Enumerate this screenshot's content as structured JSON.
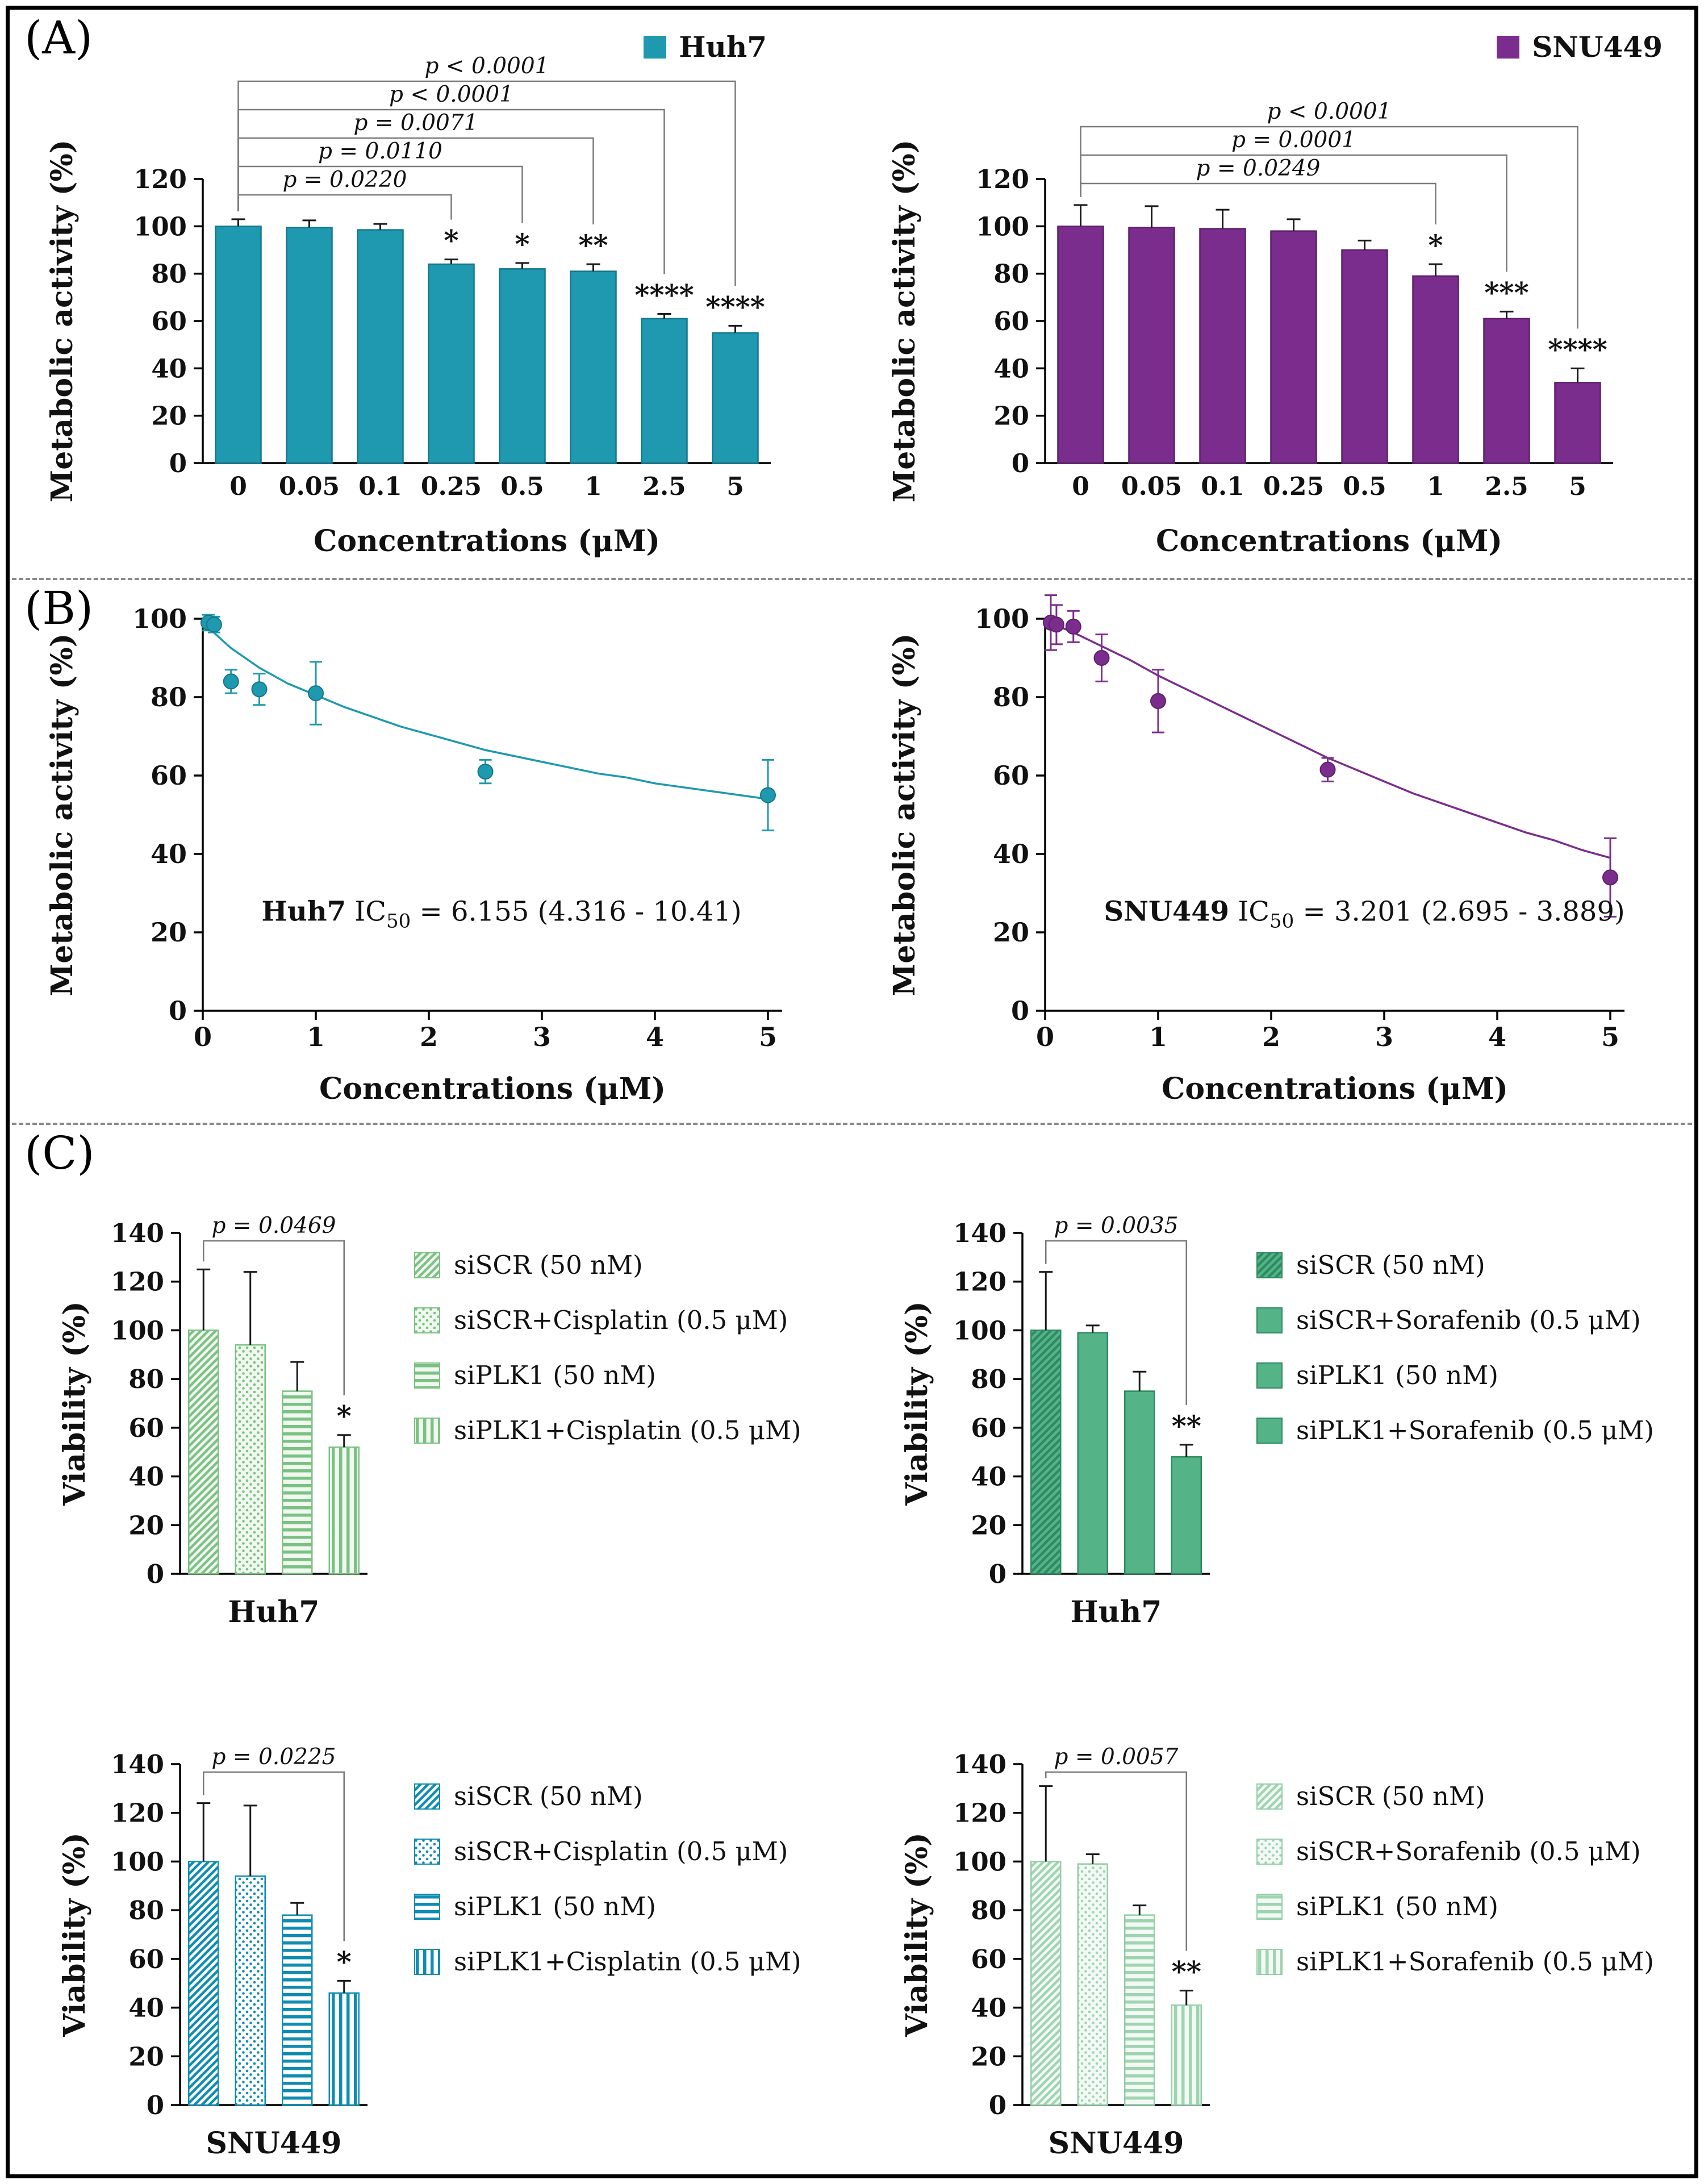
{
  "figure": {
    "panel_a_label": "(A)",
    "panel_b_label": "(B)",
    "panel_c_label": "(C)"
  },
  "chart_data": [
    {
      "id": "chart-a-huh7",
      "type": "bar",
      "legend_label": "Huh7",
      "color": "#1e99af",
      "bar_stroke": "#15768a",
      "xlabel": "Concentrations (μM)",
      "ylabel": "Metabolic activity (%)",
      "ylim": [
        0,
        120
      ],
      "ytick": 20,
      "categories": [
        "0",
        "0.05",
        "0.1",
        "0.25",
        "0.5",
        "1",
        "2.5",
        "5"
      ],
      "values": [
        100,
        99.5,
        98.5,
        84,
        82,
        81,
        61,
        55
      ],
      "errors": [
        3,
        3,
        2.5,
        2,
        2.5,
        3,
        2,
        3
      ],
      "sig": [
        "",
        "",
        "",
        "*",
        "*",
        "**",
        "****",
        "****"
      ],
      "brackets": [
        {
          "from": 0,
          "to": 3,
          "label": "p = 0.0220"
        },
        {
          "from": 0,
          "to": 4,
          "label": "p = 0.0110"
        },
        {
          "from": 0,
          "to": 5,
          "label": "p = 0.0071"
        },
        {
          "from": 0,
          "to": 6,
          "label": "p < 0.0001"
        },
        {
          "from": 0,
          "to": 7,
          "label": "p < 0.0001"
        }
      ]
    },
    {
      "id": "chart-a-snu449",
      "type": "bar",
      "legend_label": "SNU449",
      "color": "#7b2d8e",
      "bar_stroke": "#5c2069",
      "xlabel": "Concentrations (μM)",
      "ylabel": "Metabolic activity (%)",
      "ylim": [
        0,
        120
      ],
      "ytick": 20,
      "categories": [
        "0",
        "0.05",
        "0.1",
        "0.25",
        "0.5",
        "1",
        "2.5",
        "5"
      ],
      "values": [
        100,
        99.5,
        99,
        98,
        90,
        79,
        61,
        34
      ],
      "errors": [
        9,
        9,
        8,
        5,
        4,
        5,
        3,
        6
      ],
      "sig": [
        "",
        "",
        "",
        "",
        "",
        "*",
        "***",
        "****"
      ],
      "brackets": [
        {
          "from": 0,
          "to": 5,
          "label": "p = 0.0249"
        },
        {
          "from": 0,
          "to": 6,
          "label": "p = 0.0001"
        },
        {
          "from": 0,
          "to": 7,
          "label": "p < 0.0001"
        }
      ]
    },
    {
      "id": "chart-b-huh7",
      "type": "scatter",
      "color": "#1e99af",
      "point_stroke": "#157788",
      "xlabel": "Concentrations (μM)",
      "ylabel": "Metabolic activity (%)",
      "xlim": [
        0,
        5
      ],
      "ylim": [
        0,
        100
      ],
      "xticks": [
        0,
        1,
        2,
        3,
        4,
        5
      ],
      "ytick": 20,
      "points": [
        {
          "x": 0.05,
          "y": 99,
          "err": 2
        },
        {
          "x": 0.1,
          "y": 98.5,
          "err": 2
        },
        {
          "x": 0.25,
          "y": 84,
          "err": 3
        },
        {
          "x": 0.5,
          "y": 82,
          "err": 4
        },
        {
          "x": 1,
          "y": 81,
          "err": 8
        },
        {
          "x": 2.5,
          "y": 61,
          "err": 3
        },
        {
          "x": 5,
          "y": 55,
          "err": 9
        }
      ],
      "curve": [
        [
          0,
          99
        ],
        [
          0.25,
          92.5
        ],
        [
          0.5,
          87.5
        ],
        [
          0.75,
          83.5
        ],
        [
          1,
          80.5
        ],
        [
          1.25,
          77.5
        ],
        [
          1.5,
          75
        ],
        [
          1.75,
          72.5
        ],
        [
          2,
          70.5
        ],
        [
          2.25,
          68.5
        ],
        [
          2.5,
          66.5
        ],
        [
          2.75,
          65
        ],
        [
          3,
          63.5
        ],
        [
          3.25,
          62
        ],
        [
          3.5,
          60.5
        ],
        [
          3.75,
          59.5
        ],
        [
          4,
          58
        ],
        [
          4.25,
          57
        ],
        [
          4.5,
          56
        ],
        [
          4.75,
          55
        ],
        [
          5,
          54
        ]
      ],
      "annotation": {
        "name": "Huh7",
        "ic": " IC",
        "sub": "50",
        "rest": " = 6.155 (4.316 - 10.41)",
        "x": 0.52,
        "y": 23
      }
    },
    {
      "id": "chart-b-snu449",
      "type": "scatter",
      "color": "#7b2d8e",
      "point_stroke": "#5c2069",
      "xlabel": "Concentrations (μM)",
      "ylabel": "Metabolic activity (%)",
      "xlim": [
        0,
        5
      ],
      "ylim": [
        0,
        100
      ],
      "xticks": [
        0,
        1,
        2,
        3,
        4,
        5
      ],
      "ytick": 20,
      "points": [
        {
          "x": 0.05,
          "y": 99,
          "err": 7
        },
        {
          "x": 0.1,
          "y": 98.5,
          "err": 5
        },
        {
          "x": 0.25,
          "y": 98,
          "err": 4
        },
        {
          "x": 0.5,
          "y": 90,
          "err": 6
        },
        {
          "x": 1,
          "y": 79,
          "err": 8
        },
        {
          "x": 2.5,
          "y": 61.5,
          "err": 3
        },
        {
          "x": 5,
          "y": 34,
          "err": 10
        }
      ],
      "curve": [
        [
          0,
          99.5
        ],
        [
          0.25,
          96.5
        ],
        [
          0.5,
          93
        ],
        [
          0.75,
          89.5
        ],
        [
          1,
          85.5
        ],
        [
          1.25,
          82
        ],
        [
          1.5,
          78.5
        ],
        [
          1.75,
          75
        ],
        [
          2,
          71.5
        ],
        [
          2.25,
          68
        ],
        [
          2.5,
          64.5
        ],
        [
          2.75,
          61.5
        ],
        [
          3,
          58.5
        ],
        [
          3.25,
          55.5
        ],
        [
          3.5,
          53
        ],
        [
          3.75,
          50.5
        ],
        [
          4,
          48
        ],
        [
          4.25,
          45.5
        ],
        [
          4.5,
          43.5
        ],
        [
          4.75,
          41
        ],
        [
          5,
          39
        ]
      ],
      "annotation": {
        "name": "SNU449",
        "ic": " IC",
        "sub": "50",
        "rest": " = 3.201 (2.695 - 3.889)",
        "x": 0.52,
        "y": 23
      }
    },
    {
      "id": "chart-c-huh7-cisplatin",
      "type": "bar",
      "xlabel": "Huh7",
      "ylabel": "Viability (%)",
      "ylim": [
        0,
        140
      ],
      "ytick": 20,
      "color": "#7cc184",
      "pattern_line": "#7cc184",
      "pattern_bg": "#f0f8ef",
      "bar_stroke": "#7cc184",
      "patterns": [
        "diagonal",
        "dots",
        "hlines",
        "vlines"
      ],
      "values": [
        100,
        94,
        75,
        52
      ],
      "errors": [
        25,
        30,
        12,
        5
      ],
      "sig": [
        "",
        "",
        "",
        "*"
      ],
      "brackets": [
        {
          "from": 0,
          "to": 3,
          "label": "p = 0.0469"
        }
      ],
      "legend": [
        {
          "label": "siSCR (50 nM)",
          "pattern": "diagonal"
        },
        {
          "label": "siSCR+Cisplatin (0.5 μM)",
          "pattern": "dots"
        },
        {
          "label": "siPLK1 (50 nM)",
          "pattern": "hlines"
        },
        {
          "label": "siPLK1+Cisplatin (0.5 μM)",
          "pattern": "vlines"
        }
      ]
    },
    {
      "id": "chart-c-huh7-sorafenib",
      "type": "bar",
      "xlabel": "Huh7",
      "ylabel": "Viability (%)",
      "ylim": [
        0,
        140
      ],
      "ytick": 20,
      "color": "#54b488",
      "pattern_line": "#2e8a62",
      "pattern_bg": "#54b488",
      "bar_stroke": "#2e8a62",
      "patterns": [
        "diagonal",
        "solid",
        "solid",
        "solid"
      ],
      "values": [
        100,
        99,
        75,
        48
      ],
      "errors": [
        24,
        3,
        8,
        5
      ],
      "sig": [
        "",
        "",
        "",
        "**"
      ],
      "brackets": [
        {
          "from": 0,
          "to": 3,
          "label": "p = 0.0035"
        }
      ],
      "legend": [
        {
          "label": "siSCR (50 nM)",
          "pattern": "diagonal"
        },
        {
          "label": "siSCR+Sorafenib (0.5 μM)",
          "pattern": "solid"
        },
        {
          "label": "siPLK1 (50 nM)",
          "pattern": "solid"
        },
        {
          "label": "siPLK1+Sorafenib (0.5 μM)",
          "pattern": "solid"
        }
      ]
    },
    {
      "id": "chart-c-snu449-cisplatin",
      "type": "bar",
      "xlabel": "SNU449",
      "ylabel": "Viability (%)",
      "ylim": [
        0,
        140
      ],
      "ytick": 20,
      "color": "#0f8cb1",
      "pattern_line": "#0f8cb1",
      "pattern_bg": "#ffffff",
      "bar_stroke": "#0f8cb1",
      "patterns": [
        "diagonal",
        "dots",
        "hlines",
        "vlines"
      ],
      "values": [
        100,
        94,
        78,
        46
      ],
      "errors": [
        24,
        29,
        5,
        5
      ],
      "sig": [
        "",
        "",
        "",
        "*"
      ],
      "brackets": [
        {
          "from": 0,
          "to": 3,
          "label": "p = 0.0225"
        }
      ],
      "legend": [
        {
          "label": "siSCR (50 nM)",
          "pattern": "diagonal"
        },
        {
          "label": "siSCR+Cisplatin (0.5 μM)",
          "pattern": "dots"
        },
        {
          "label": "siPLK1 (50 nM)",
          "pattern": "hlines"
        },
        {
          "label": "siPLK1+Cisplatin (0.5 μM)",
          "pattern": "vlines"
        }
      ]
    },
    {
      "id": "chart-c-snu449-sorafenib",
      "type": "bar",
      "xlabel": "SNU449",
      "ylabel": "Viability (%)",
      "ylim": [
        0,
        140
      ],
      "ytick": 20,
      "color": "#a9dabb",
      "pattern_line": "#9fd4b1",
      "pattern_bg": "#f3faf5",
      "bar_stroke": "#96cdaa",
      "patterns": [
        "diagonal",
        "dots",
        "hlines",
        "vlines"
      ],
      "values": [
        100,
        99,
        78,
        41
      ],
      "errors": [
        31,
        4,
        4,
        6
      ],
      "sig": [
        "",
        "",
        "",
        "**"
      ],
      "brackets": [
        {
          "from": 0,
          "to": 3,
          "label": "p = 0.0057"
        }
      ],
      "legend": [
        {
          "label": "siSCR (50 nM)",
          "pattern": "diagonal"
        },
        {
          "label": "siSCR+Sorafenib (0.5 μM)",
          "pattern": "dots"
        },
        {
          "label": "siPLK1 (50 nM)",
          "pattern": "hlines"
        },
        {
          "label": "siPLK1+Sorafenib (0.5 μM)",
          "pattern": "vlines"
        }
      ]
    }
  ]
}
